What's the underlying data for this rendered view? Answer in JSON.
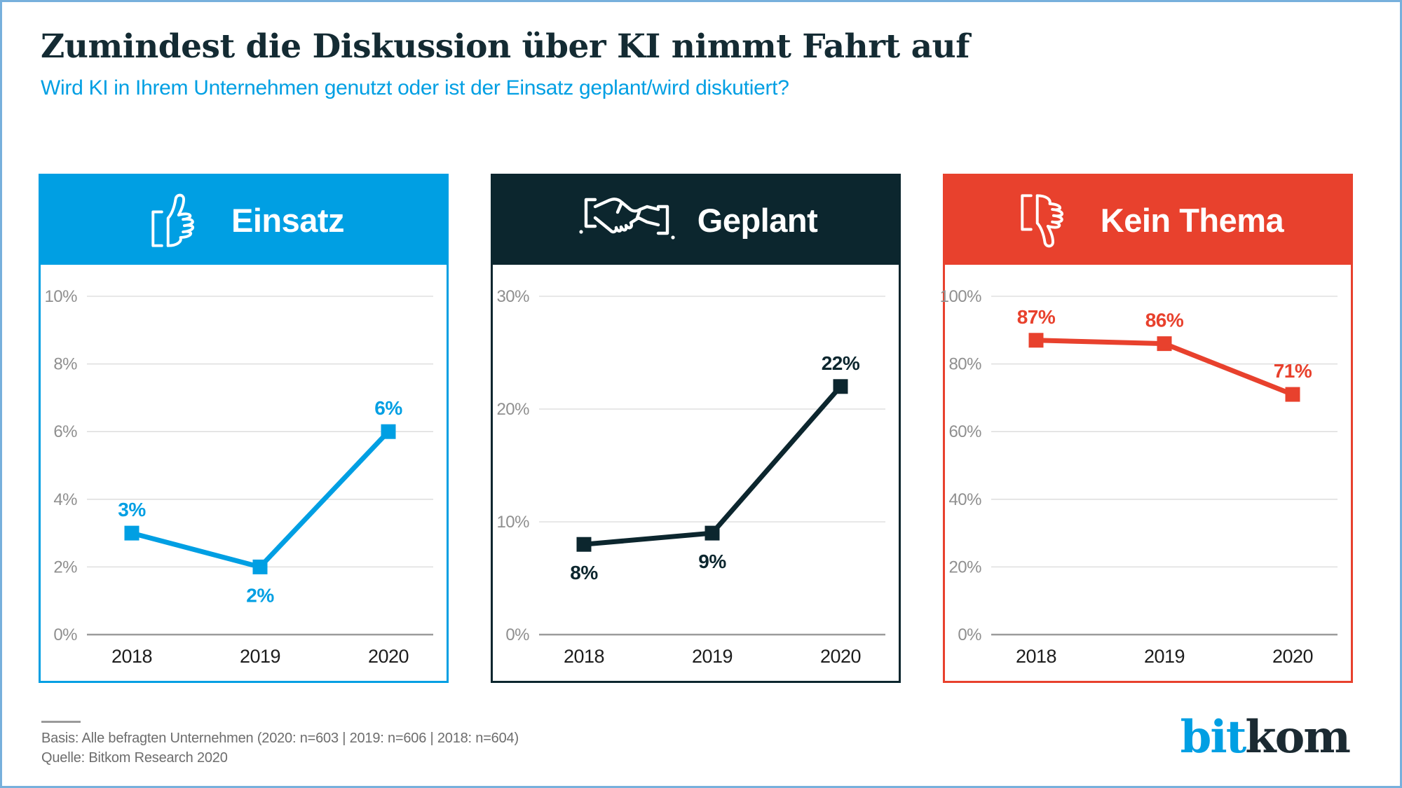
{
  "page": {
    "title": "Zumindest die Diskussion über KI nimmt Fahrt auf",
    "subtitle": "Wird KI in Ihrem Unternehmen genutzt oder ist der Einsatz geplant/wird diskutiert?",
    "footer": {
      "basis": "Basis: Alle befragten Unternehmen (2020: n=603 | 2019: n=606 | 2018: n=604)",
      "quelle": "Quelle: Bitkom Research 2020"
    },
    "logo": {
      "part1": "bit",
      "part2": "kom"
    }
  },
  "colors": {
    "accent_blue": "#009FE3",
    "dark_teal": "#0C262E",
    "red": "#E8412D",
    "frame_blue": "#77B0DC",
    "grid": "#D9D9D9",
    "zero_line": "#9B9B9B",
    "tick_label": "#8F8F8F",
    "axis_label": "#1D1D1D",
    "footer_text": "#6D6D6D",
    "title_text": "#142B33",
    "divider": "#9A9A9A"
  },
  "chart_data": [
    {
      "type": "line",
      "title": "Einsatz",
      "icon": "thumbs-up-icon",
      "color": "#009FE3",
      "categories": [
        "2018",
        "2019",
        "2020"
      ],
      "values": [
        3,
        2,
        6
      ],
      "labels": [
        "3%",
        "2%",
        "6%"
      ],
      "label_positions": [
        "above",
        "below",
        "above"
      ],
      "yticks": [
        0,
        2,
        4,
        6,
        8,
        10
      ],
      "ytick_labels": [
        "0%",
        "2%",
        "4%",
        "6%",
        "8%",
        "10%"
      ],
      "ylim": [
        0,
        10
      ],
      "xlabel": "",
      "ylabel": "",
      "grid": true,
      "legend": false,
      "marker": "square"
    },
    {
      "type": "line",
      "title": "Geplant",
      "icon": "handshake-icon",
      "color": "#0C262E",
      "categories": [
        "2018",
        "2019",
        "2020"
      ],
      "values": [
        8,
        9,
        22
      ],
      "labels": [
        "8%",
        "9%",
        "22%"
      ],
      "label_positions": [
        "below",
        "below",
        "above"
      ],
      "yticks": [
        0,
        10,
        20,
        30
      ],
      "ytick_labels": [
        "0%",
        "10%",
        "20%",
        "30%"
      ],
      "ylim": [
        0,
        30
      ],
      "xlabel": "",
      "ylabel": "",
      "grid": true,
      "legend": false,
      "marker": "square"
    },
    {
      "type": "line",
      "title": "Kein Thema",
      "icon": "thumbs-down-icon",
      "color": "#E8412D",
      "categories": [
        "2018",
        "2019",
        "2020"
      ],
      "values": [
        87,
        86,
        71
      ],
      "labels": [
        "87%",
        "86%",
        "71%"
      ],
      "label_positions": [
        "above",
        "above",
        "above"
      ],
      "yticks": [
        0,
        20,
        40,
        60,
        80,
        100
      ],
      "ytick_labels": [
        "0%",
        "20%",
        "40%",
        "60%",
        "80%",
        "100%"
      ],
      "ylim": [
        0,
        100
      ],
      "xlabel": "",
      "ylabel": "",
      "grid": true,
      "legend": false,
      "marker": "square"
    }
  ]
}
